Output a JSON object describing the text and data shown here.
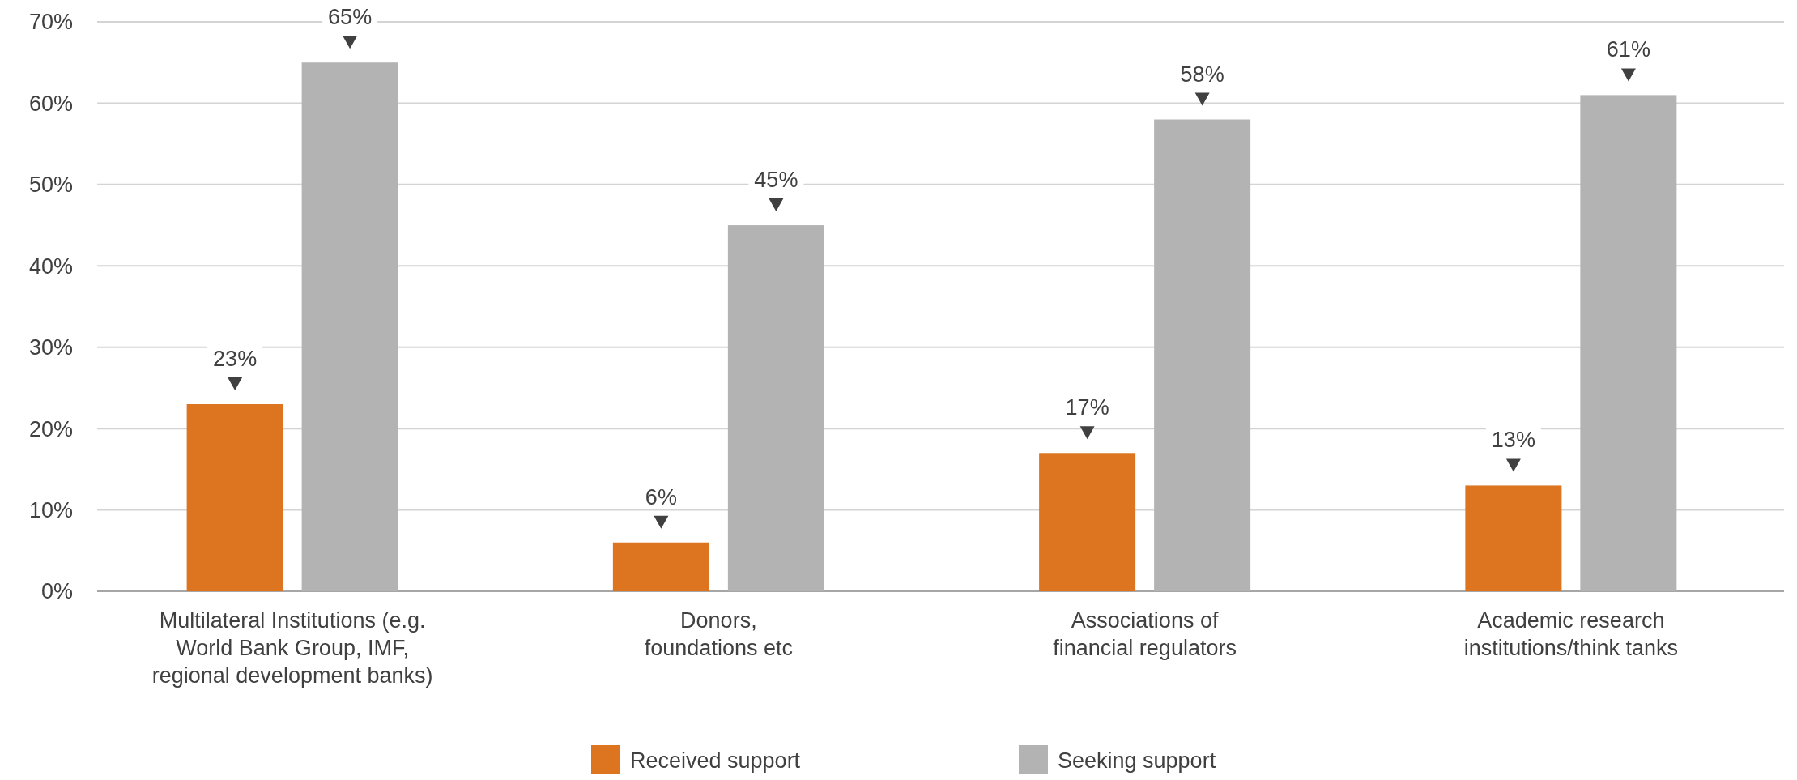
{
  "chart_data": {
    "type": "bar",
    "categories": [
      "Multilateral Institutions (e.g.\nWorld Bank Group, IMF,\nregional development banks)",
      "Donors,\nfoundations etc",
      "Associations of\nfinancial regulators",
      "Academic research\ninstitutions/think tanks"
    ],
    "series": [
      {
        "name": "Received support",
        "color": "#dc7420",
        "values": [
          23,
          6,
          17,
          13
        ],
        "value_labels": [
          "23%",
          "6%",
          "17%",
          "13%"
        ]
      },
      {
        "name": "Seeking support",
        "color": "#b3b3b3",
        "values": [
          65,
          45,
          58,
          61
        ],
        "value_labels": [
          "65%",
          "45%",
          "58%",
          "61%"
        ]
      }
    ],
    "ylim": [
      0,
      70
    ],
    "yticks": [
      {
        "value": 0,
        "label": "0%"
      },
      {
        "value": 10,
        "label": "10%"
      },
      {
        "value": 20,
        "label": "20%"
      },
      {
        "value": 30,
        "label": "30%"
      },
      {
        "value": 40,
        "label": "40%"
      },
      {
        "value": 50,
        "label": "50%"
      },
      {
        "value": 60,
        "label": "60%"
      },
      {
        "value": 70,
        "label": "70%"
      }
    ],
    "grid": "y",
    "legend": "bottom"
  }
}
